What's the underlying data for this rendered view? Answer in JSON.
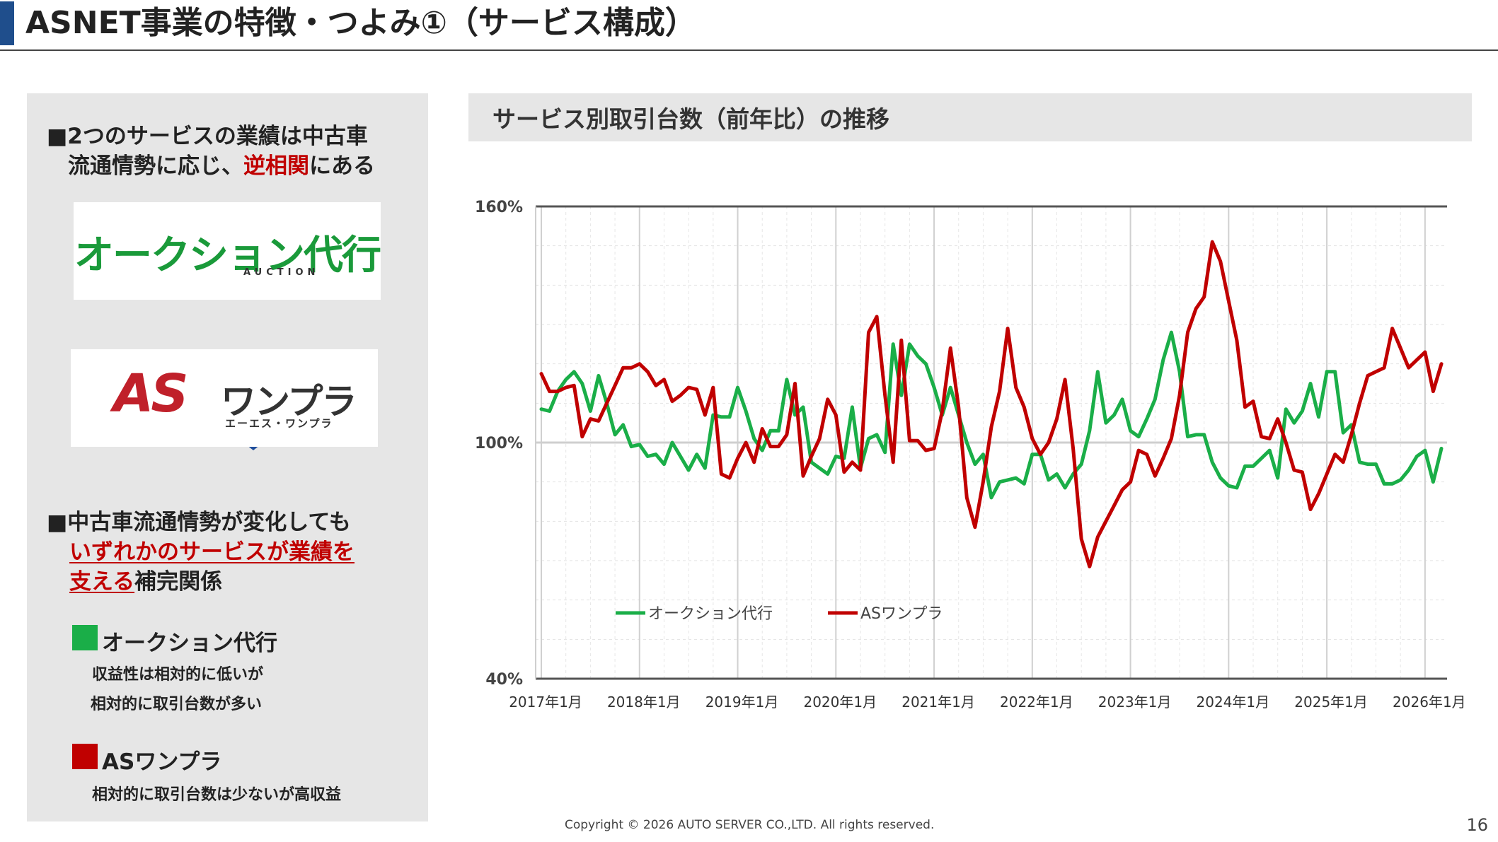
{
  "header": {
    "title": "ASNET事業の特徴・つよみ①（サービス構成）"
  },
  "left": {
    "point1_line1": "■2つのサービスの業績は中古車",
    "point1_line2_a": "流通情勢に応じ、",
    "point1_line2_b": "逆相関",
    "point1_line2_c": "にある",
    "logo_auction_main": "オークション代行",
    "logo_auction_sub": "AUCTION",
    "logo_as_main": "AS",
    "logo_as_kana": "ワンプラ",
    "logo_as_sub": "エーエス・ワンプラ",
    "point2_line1": "■中古車流通情勢が変化しても",
    "point2_line2": "いずれかのサービスが業績を",
    "point2_line3_a": "支える",
    "point2_line3_b": "補完関係",
    "svc1_name": "オークション代行",
    "svc1_desc1": "収益性は相対的に低いが",
    "svc1_desc2": "相対的に取引台数が多い",
    "svc2_name": "ASワンプラ",
    "svc2_desc1": "相対的に取引台数は少ないが高収益",
    "colors": {
      "green": "#1aae48",
      "red": "#c00000",
      "arrow": "#1f4e9c"
    }
  },
  "chart_header": {
    "title": "サービス別取引台数（前年比）の推移"
  },
  "chart_data": {
    "type": "line",
    "title": "サービス別取引台数（前年比）の推移",
    "yunit": "%",
    "ylim": [
      40,
      160
    ],
    "ytick_labels": [
      "40%",
      "100%",
      "160%"
    ],
    "xtick_labels": [
      "2017年1月",
      "2018年1月",
      "2019年1月",
      "2020年1月",
      "2021年1月",
      "2022年1月",
      "2023年1月",
      "2024年1月",
      "2025年1月",
      "2026年1月"
    ],
    "x_start": "2017年1月",
    "x_step": "1 month",
    "grid": true,
    "legend_position": "bottom-left",
    "series": [
      {
        "name": "オークション代行",
        "color": "#1aae48",
        "values": [
          108.5,
          108,
          113,
          116,
          118,
          115,
          108,
          117,
          110,
          102,
          104.5,
          99,
          99.5,
          96.5,
          97,
          94.5,
          100,
          96.5,
          93,
          97,
          93.5,
          107,
          106.5,
          106.5,
          114,
          108,
          101,
          98,
          103,
          103,
          116,
          107,
          109,
          95,
          93.5,
          92,
          96.5,
          96,
          109,
          93.5,
          101,
          102,
          97.5,
          125,
          112,
          125,
          122,
          120,
          114,
          107,
          114,
          107,
          100,
          94.5,
          97,
          86,
          90,
          90.5,
          91,
          89.5,
          97,
          97,
          90.5,
          92,
          88.5,
          92,
          94.5,
          103,
          118,
          105,
          107,
          111,
          103,
          101.5,
          106,
          111,
          121,
          128,
          118,
          101.5,
          102,
          102,
          95,
          91,
          89,
          88.5,
          94,
          94,
          96,
          98,
          91,
          108.5,
          105,
          108,
          115,
          106.5,
          118,
          118,
          102.5,
          104.5,
          95,
          94.5,
          94.5,
          89.5,
          89.5,
          90.5,
          93,
          96.5,
          98,
          90,
          98.5
        ]
      },
      {
        "name": "ASワンプラ",
        "color": "#c00000",
        "values": [
          117.5,
          113,
          113,
          114,
          114.5,
          101.5,
          106,
          105.5,
          110,
          114.5,
          119,
          119,
          120,
          118,
          114.5,
          116,
          110.5,
          112,
          114,
          113.5,
          107,
          114,
          92,
          91,
          96,
          100,
          95,
          103.5,
          99,
          99,
          102,
          115,
          91.5,
          96.5,
          101,
          111,
          107,
          92.5,
          95,
          93,
          128,
          132,
          112,
          95,
          126,
          100.5,
          100.5,
          98,
          98.5,
          108,
          124,
          109,
          86,
          78.5,
          90,
          104,
          113,
          129,
          114,
          109,
          101,
          97,
          100,
          106,
          116,
          98.5,
          75.5,
          68.5,
          76,
          80,
          84,
          88,
          90,
          98,
          97,
          91.5,
          96,
          101,
          112,
          128,
          134,
          137,
          151,
          146,
          136,
          126,
          109,
          110.5,
          101.5,
          101,
          106,
          100,
          93,
          92.5,
          83,
          87,
          92,
          97,
          95,
          102,
          110,
          117,
          118,
          119,
          129,
          124,
          119,
          121,
          123,
          113,
          120
        ]
      }
    ]
  },
  "footer": {
    "copyright": "Copyright © 2026 AUTO SERVER CO.,LTD.  All rights reserved.",
    "page": "16"
  }
}
